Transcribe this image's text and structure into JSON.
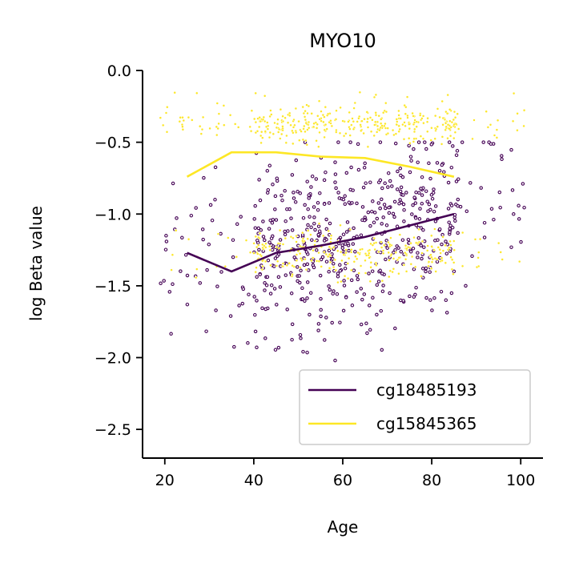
{
  "chart_data": {
    "type": "scatter",
    "title": "MYO10",
    "xlabel": "Age",
    "ylabel": "log Beta value",
    "xlim": [
      15,
      105
    ],
    "ylim": [
      -2.7,
      0.0
    ],
    "xticks": [
      20,
      40,
      60,
      80,
      100
    ],
    "yticks": [
      0.0,
      -0.5,
      -1.0,
      -1.5,
      -2.0,
      -2.5
    ],
    "xtick_labels": [
      "20",
      "40",
      "60",
      "80",
      "100"
    ],
    "ytick_labels": [
      "0.0",
      "−0.5",
      "−1.0",
      "−1.5",
      "−2.0",
      "−2.5"
    ],
    "grid": false,
    "legend_position": "lower-right",
    "series": [
      {
        "name": "cg18485193",
        "color": "#440154",
        "trend": {
          "x": [
            25,
            35,
            45,
            55,
            65,
            75,
            85
          ],
          "y": [
            -1.27,
            -1.4,
            -1.27,
            -1.22,
            -1.16,
            -1.08,
            -1.0
          ]
        },
        "points_summary": {
          "x_range": [
            19,
            101
          ],
          "y_range": [
            -2.3,
            -0.55
          ],
          "dense_region_x": [
            40,
            85
          ],
          "approx_count": 600
        }
      },
      {
        "name": "cg15845365",
        "color": "#fde725",
        "trend": {
          "x": [
            25,
            35,
            45,
            55,
            65,
            75,
            85
          ],
          "y": [
            -0.74,
            -0.57,
            -0.57,
            -0.6,
            -0.61,
            -0.67,
            -0.74
          ]
        },
        "points_summary": {
          "clusters": [
            {
              "x_range": [
                19,
                93
              ],
              "y_range": [
                -0.5,
                -0.13
              ]
            },
            {
              "x_range": [
                19,
                101
              ],
              "y_range": [
                -1.5,
                -1.05
              ]
            }
          ],
          "approx_count": 650
        }
      }
    ]
  }
}
